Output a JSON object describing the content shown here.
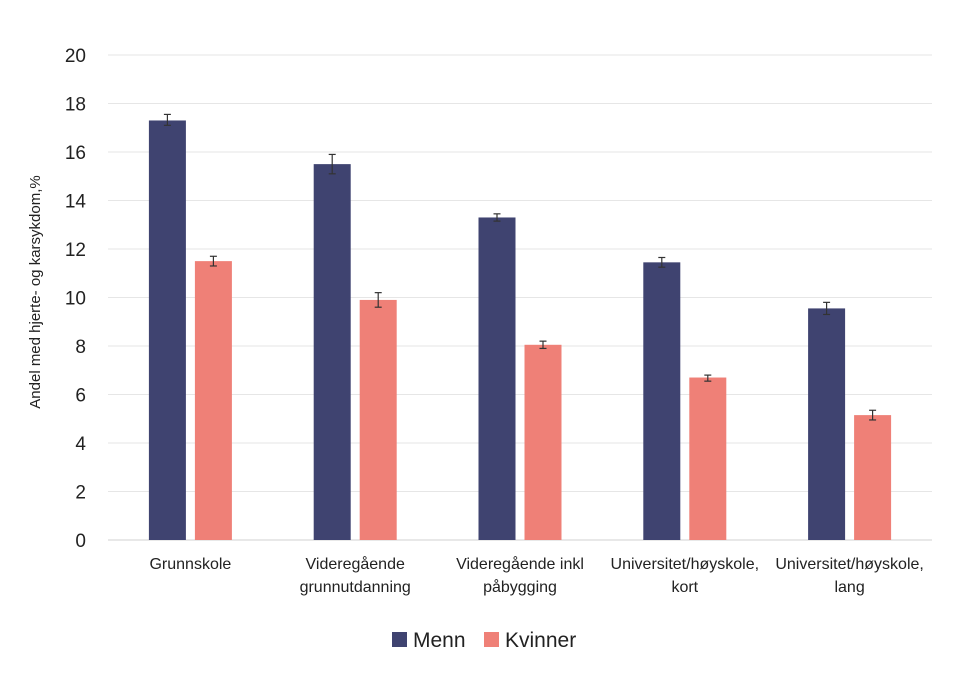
{
  "chart_data": {
    "type": "bar",
    "title": "",
    "xlabel": "",
    "ylabel": "Andel med  hjerte- og karsykdom,%",
    "ylim": [
      0,
      20
    ],
    "yticks": [
      0,
      2,
      4,
      6,
      8,
      10,
      12,
      14,
      16,
      18,
      20
    ],
    "grid": true,
    "legend_position": "bottom",
    "categories": [
      [
        "Grunnskole"
      ],
      [
        "Videregående",
        "grunnutdanning"
      ],
      [
        "Videregående inkl",
        "påbygging"
      ],
      [
        "Universitet/høyskole,",
        "kort"
      ],
      [
        "Universitet/høyskole,",
        "lang"
      ]
    ],
    "series": [
      {
        "name": "Menn",
        "color": "#3f4370",
        "values": [
          17.3,
          15.5,
          13.3,
          11.45,
          9.55
        ],
        "error_low": [
          17.1,
          15.1,
          13.15,
          11.25,
          9.3
        ],
        "error_high": [
          17.55,
          15.9,
          13.45,
          11.65,
          9.8
        ]
      },
      {
        "name": "Kvinner",
        "color": "#ef8077",
        "values": [
          11.5,
          9.9,
          8.05,
          6.7,
          5.15
        ],
        "error_low": [
          11.3,
          9.6,
          7.9,
          6.55,
          4.95
        ],
        "error_high": [
          11.7,
          10.2,
          8.2,
          6.8,
          5.35
        ]
      }
    ]
  }
}
